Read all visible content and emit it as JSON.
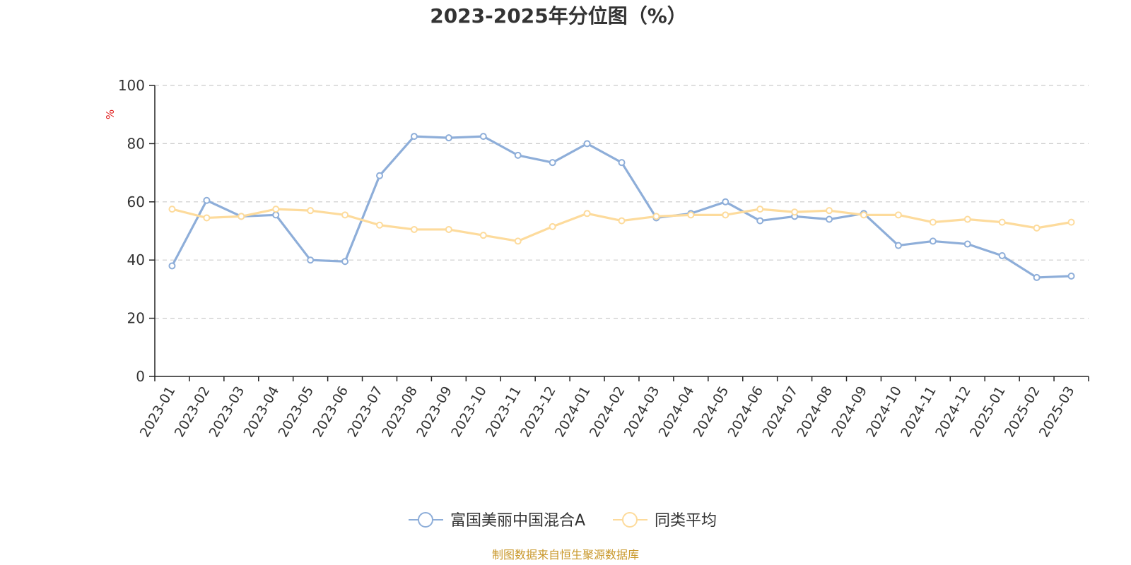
{
  "chart_data": {
    "type": "line",
    "title": "2023-2025年分位图（%）",
    "ylabel": "%",
    "xlabel": "",
    "ylim": [
      0,
      100
    ],
    "yticks": [
      0,
      20,
      40,
      60,
      80,
      100
    ],
    "grid": true,
    "legend_position": "bottom",
    "categories": [
      "2023-01",
      "2023-02",
      "2023-03",
      "2023-04",
      "2023-05",
      "2023-06",
      "2023-07",
      "2023-08",
      "2023-09",
      "2023-10",
      "2023-11",
      "2023-12",
      "2024-01",
      "2024-02",
      "2024-03",
      "2024-04",
      "2024-05",
      "2024-06",
      "2024-07",
      "2024-08",
      "2024-09",
      "2024-10",
      "2024-11",
      "2024-12",
      "2025-01",
      "2025-02",
      "2025-03"
    ],
    "series": [
      {
        "name": "富国美丽中国混合A",
        "color": "#8eaed9",
        "values": [
          38.0,
          60.5,
          55.0,
          55.5,
          40.0,
          39.5,
          69.0,
          82.5,
          82.0,
          82.5,
          76.0,
          73.5,
          80.0,
          73.5,
          54.5,
          56.0,
          60.0,
          53.5,
          55.0,
          54.0,
          56.0,
          45.0,
          46.5,
          45.5,
          41.5,
          34.0,
          34.5
        ]
      },
      {
        "name": "同类平均",
        "color": "#fddb9c",
        "values": [
          57.5,
          54.5,
          55.0,
          57.5,
          57.0,
          55.5,
          52.0,
          50.5,
          50.5,
          48.5,
          46.5,
          51.5,
          56.0,
          53.5,
          55.0,
          55.5,
          55.5,
          57.5,
          56.5,
          57.0,
          55.5,
          55.5,
          53.0,
          54.0,
          53.0,
          51.0,
          53.0
        ]
      }
    ]
  },
  "colors": {
    "unit_label": "#e01c1c",
    "source": "#c9982b",
    "axis": "#222222",
    "grid": "#cccccc"
  },
  "footer": {
    "source": "制图数据来自恒生聚源数据库"
  }
}
